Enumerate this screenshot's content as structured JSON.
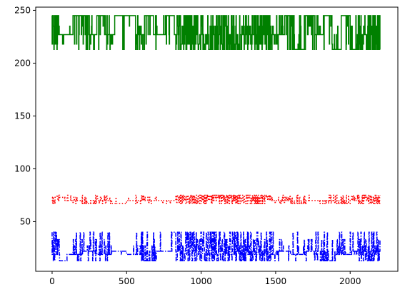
{
  "chart_data": {
    "type": "line",
    "title": "",
    "xlabel": "",
    "ylabel": "",
    "xlim": [
      -110,
      2320
    ],
    "ylim": [
      3,
      253
    ],
    "x_ticks": [
      "0",
      "500",
      "1000",
      "1500",
      "2000"
    ],
    "x_tick_values": [
      0,
      500,
      1000,
      1500,
      2000
    ],
    "y_ticks": [
      "50",
      "100",
      "150",
      "200",
      "250"
    ],
    "y_tick_values": [
      50,
      100,
      150,
      200,
      250
    ],
    "grid": false,
    "legend": "none",
    "series": [
      {
        "color": "#008000",
        "style": "solid",
        "levels": [
          213,
          218,
          227,
          235,
          245
        ],
        "x": [
          0,
          40,
          60,
          140,
          250,
          300,
          350,
          420,
          480,
          560,
          620,
          680,
          760,
          820,
          840,
          900,
          1000,
          1100,
          1200,
          1300,
          1400,
          1460,
          1500,
          1560,
          1620,
          1700,
          1760,
          1820,
          1880,
          1940,
          2000,
          2060,
          2120,
          2200
        ],
        "y": [
          245,
          227,
          227,
          245,
          227,
          245,
          227,
          245,
          245,
          227,
          245,
          227,
          245,
          227,
          213,
          245,
          213,
          245,
          213,
          245,
          213,
          227,
          227,
          245,
          213,
          245,
          227,
          245,
          213,
          245,
          213,
          227,
          245,
          213
        ]
      },
      {
        "color": "#ff0000",
        "style": "dotted",
        "levels": [
          67,
          70,
          73,
          75
        ],
        "x": [
          0,
          100,
          200,
          300,
          400,
          500,
          600,
          700,
          800,
          850,
          900,
          1000,
          1100,
          1200,
          1300,
          1400,
          1460,
          1500,
          1600,
          1700,
          1800,
          1900,
          2000,
          2100,
          2200
        ],
        "y": [
          73,
          70,
          67,
          70,
          67,
          70,
          70,
          70,
          70,
          75,
          67,
          75,
          67,
          75,
          67,
          75,
          70,
          70,
          67,
          70,
          70,
          67,
          70,
          67,
          75
        ]
      },
      {
        "color": "#0000ff",
        "style": "dashdot",
        "levels": [
          13,
          19,
          22,
          27,
          33,
          40
        ],
        "x": [
          0,
          50,
          100,
          200,
          300,
          400,
          500,
          600,
          700,
          800,
          850,
          900,
          1000,
          1100,
          1200,
          1300,
          1400,
          1460,
          1500,
          1600,
          1700,
          1800,
          1900,
          2000,
          2100,
          2200
        ],
        "y": [
          40,
          13,
          19,
          22,
          19,
          22,
          19,
          13,
          22,
          40,
          13,
          40,
          13,
          40,
          13,
          40,
          13,
          19,
          22,
          19,
          22,
          13,
          19,
          22,
          13,
          40
        ]
      }
    ]
  }
}
